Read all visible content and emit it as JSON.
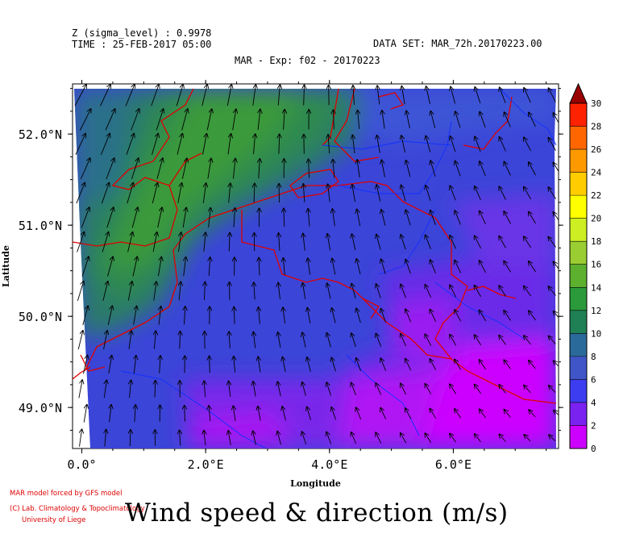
{
  "header": {
    "z_line": "Z (sigma_level) : 0.9978",
    "time_line": "TIME : 25-FEB-2017 05:00",
    "dataset_line": "DATA SET: MAR_72h.20170223.00",
    "exp_line": "MAR - Exp: f02 - 20170223"
  },
  "footer": {
    "credit1": "MAR model forced by GFS model",
    "credit2": "(C) Lab. Climatology & Topoclimatology",
    "credit3": "University of Liege",
    "title": "Wind speed & direction (m/s)"
  },
  "chart_data": {
    "type": "heatmap",
    "title": "Wind speed & direction (m/s)",
    "xlabel": "Longitude",
    "ylabel": "Latitude",
    "xlim": [
      -0.15,
      7.7
    ],
    "ylim": [
      48.55,
      52.55
    ],
    "x_ticks": [
      {
        "value": 0,
        "label": "0.0°"
      },
      {
        "value": 2,
        "label": "2.0°E"
      },
      {
        "value": 4,
        "label": "4.0°E"
      },
      {
        "value": 6,
        "label": "6.0°E"
      }
    ],
    "y_ticks": [
      {
        "value": 49,
        "label": "49.0°N"
      },
      {
        "value": 50,
        "label": "50.0°N"
      },
      {
        "value": 51,
        "label": "51.0°N"
      },
      {
        "value": 52,
        "label": "52.0°N"
      }
    ],
    "colorbar": {
      "levels": [
        0,
        2,
        4,
        6,
        8,
        10,
        12,
        14,
        16,
        18,
        20,
        22,
        24,
        26,
        28,
        30
      ],
      "colors": [
        "#cc00ff",
        "#7a22f0",
        "#3c3cf0",
        "#3f55c8",
        "#2a6a9a",
        "#1f7f55",
        "#2a9a3a",
        "#5cb02e",
        "#9acd32",
        "#ccee22",
        "#ffff00",
        "#ffcc00",
        "#ff9900",
        "#ff6600",
        "#ff2200",
        "#dd0000"
      ],
      "overflow_color": "#990000"
    },
    "wind_field": {
      "description_values": "speed roughly 8-11 m/s in northwest (English Channel / North Sea), 4-6 m/s over Benelux and central France, 0-2 m/s in southeast; direction mostly from southwest"
    }
  }
}
